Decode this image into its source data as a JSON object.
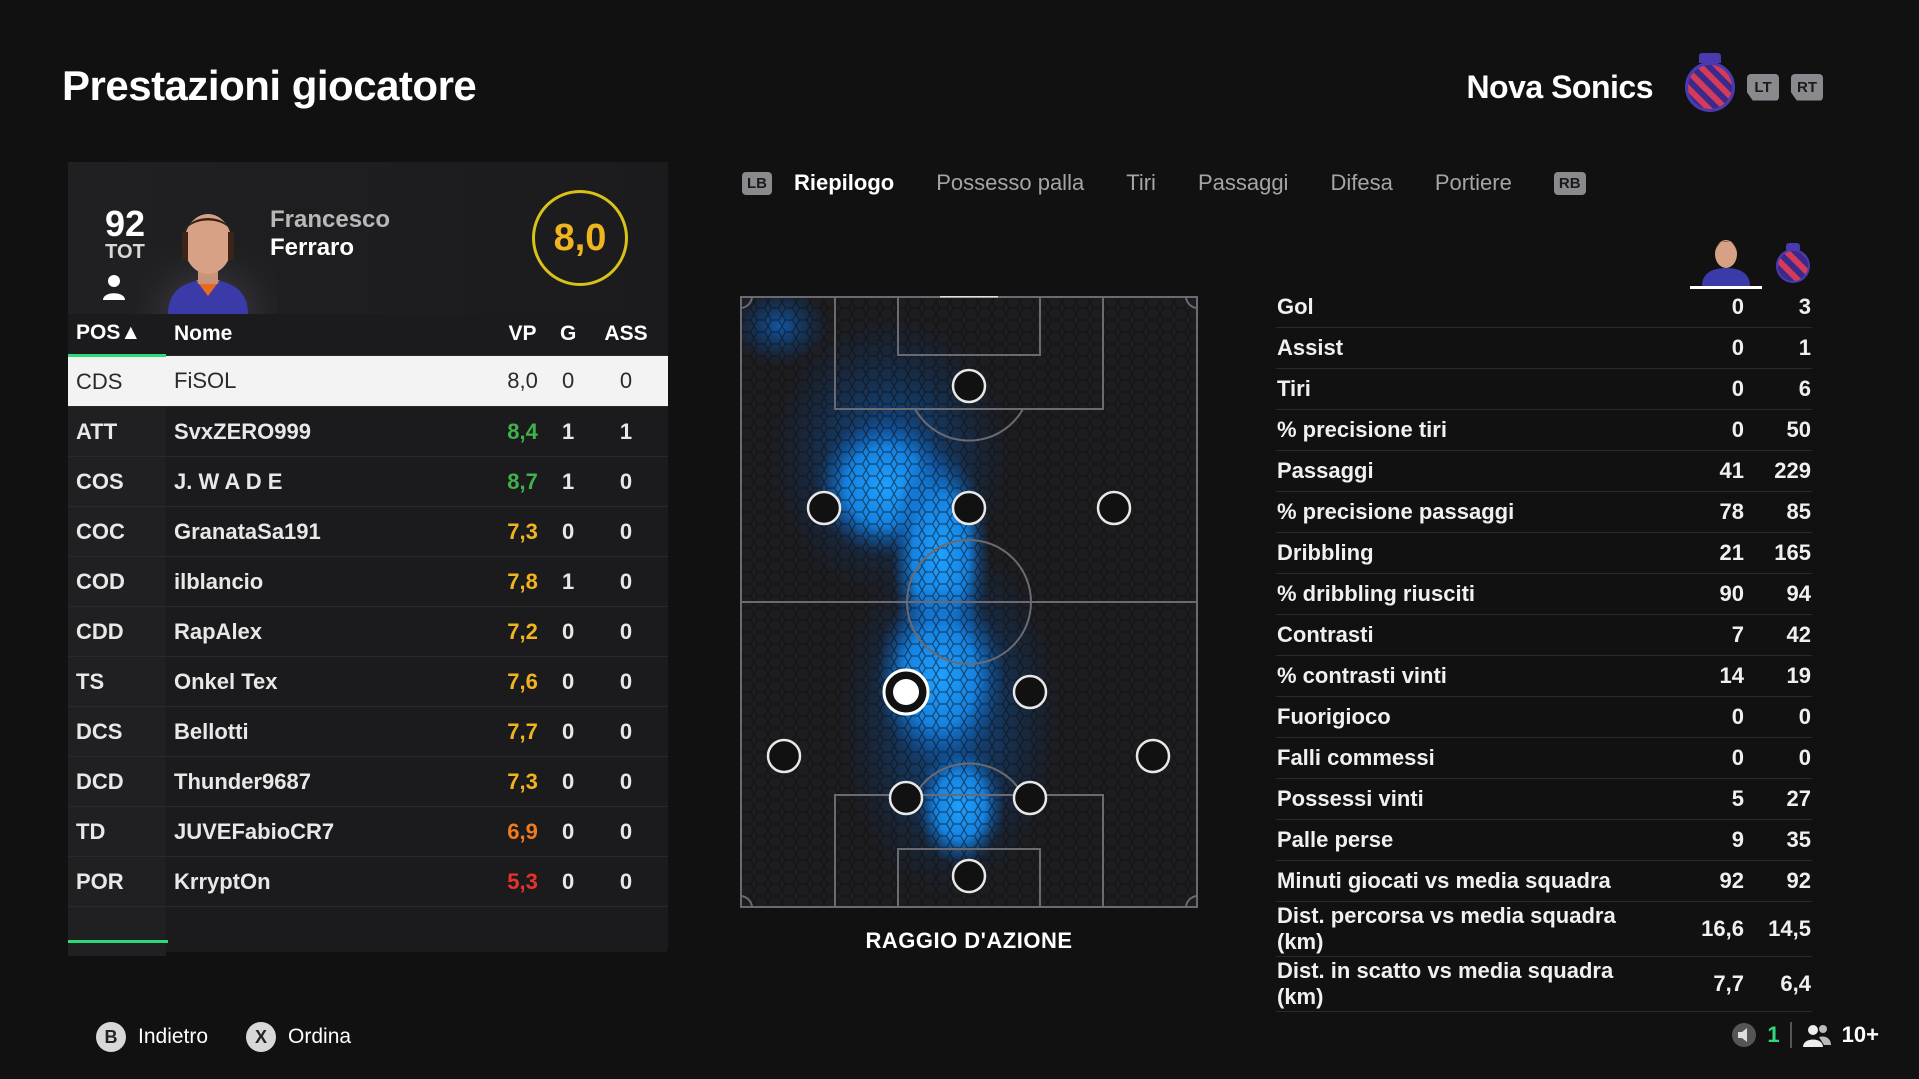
{
  "page": {
    "title": "Prestazioni giocatore"
  },
  "team": {
    "name": "Nova Sonics"
  },
  "buttons": {
    "lt": "LT",
    "rt": "RT",
    "lb": "LB",
    "rb": "RB"
  },
  "player": {
    "ovr": "92",
    "ovr_label": "TOT",
    "first_name": "Francesco",
    "last_name": "Ferraro",
    "rating": "8,0"
  },
  "table": {
    "headers": {
      "pos": "POS▲",
      "name": "Nome",
      "vp": "VP",
      "g": "G",
      "ass": "ASS"
    },
    "rows": [
      {
        "pos": "CDS",
        "name": "FiSOL",
        "vp": "8,0",
        "g": "0",
        "ass": "0",
        "color": "#2a2a2a"
      },
      {
        "pos": "ATT",
        "name": "SvxZERO999",
        "vp": "8,4",
        "g": "1",
        "ass": "1",
        "color": "#3fb24a"
      },
      {
        "pos": "COS",
        "name": "J. W A D E",
        "vp": "8,7",
        "g": "1",
        "ass": "0",
        "color": "#3fb24a"
      },
      {
        "pos": "COC",
        "name": "GranataSa191",
        "vp": "7,3",
        "g": "0",
        "ass": "0",
        "color": "#f0b41e"
      },
      {
        "pos": "COD",
        "name": "ilblancio",
        "vp": "7,8",
        "g": "1",
        "ass": "0",
        "color": "#f0b41e"
      },
      {
        "pos": "CDD",
        "name": "RapAlex",
        "vp": "7,2",
        "g": "0",
        "ass": "0",
        "color": "#f0b41e"
      },
      {
        "pos": "TS",
        "name": "Onkel Tex",
        "vp": "7,6",
        "g": "0",
        "ass": "0",
        "color": "#f0b41e"
      },
      {
        "pos": "DCS",
        "name": "Bellotti",
        "vp": "7,7",
        "g": "0",
        "ass": "0",
        "color": "#f0b41e"
      },
      {
        "pos": "DCD",
        "name": "Thunder9687",
        "vp": "7,3",
        "g": "0",
        "ass": "0",
        "color": "#f0b41e"
      },
      {
        "pos": "TD",
        "name": "JUVEFabioCR7",
        "vp": "6,9",
        "g": "0",
        "ass": "0",
        "color": "#f07a1e"
      },
      {
        "pos": "POR",
        "name": "KrryptOn",
        "vp": "5,3",
        "g": "0",
        "ass": "0",
        "color": "#e8332a"
      }
    ]
  },
  "tabs": [
    {
      "label": "Riepilogo",
      "active": true
    },
    {
      "label": "Possesso palla",
      "active": false
    },
    {
      "label": "Tiri",
      "active": false
    },
    {
      "label": "Passaggi",
      "active": false
    },
    {
      "label": "Difesa",
      "active": false
    },
    {
      "label": "Portiere",
      "active": false
    }
  ],
  "heatmap": {
    "caption": "RAGGIO D'AZIONE"
  },
  "stats": [
    {
      "label": "Gol",
      "player": "0",
      "team": "3"
    },
    {
      "label": "Assist",
      "player": "0",
      "team": "1"
    },
    {
      "label": "Tiri",
      "player": "0",
      "team": "6"
    },
    {
      "label": "% precisione tiri",
      "player": "0",
      "team": "50"
    },
    {
      "label": "Passaggi",
      "player": "41",
      "team": "229"
    },
    {
      "label": "% precisione passaggi",
      "player": "78",
      "team": "85"
    },
    {
      "label": "Dribbling",
      "player": "21",
      "team": "165"
    },
    {
      "label": "% dribbling riusciti",
      "player": "90",
      "team": "94"
    },
    {
      "label": "Contrasti",
      "player": "7",
      "team": "42"
    },
    {
      "label": "% contrasti vinti",
      "player": "14",
      "team": "19"
    },
    {
      "label": "Fuorigioco",
      "player": "0",
      "team": "0"
    },
    {
      "label": "Falli commessi",
      "player": "0",
      "team": "0"
    },
    {
      "label": "Possessi vinti",
      "player": "5",
      "team": "27"
    },
    {
      "label": "Palle perse",
      "player": "9",
      "team": "35"
    },
    {
      "label": "Minuti giocati vs media squadra",
      "player": "92",
      "team": "92"
    },
    {
      "label": "Dist. percorsa vs media squadra (km)",
      "player": "16,6",
      "team": "14,5"
    },
    {
      "label": "Dist. in scatto vs media squadra (km)",
      "player": "7,7",
      "team": "6,4"
    }
  ],
  "footer": {
    "back_key": "B",
    "back_label": "Indietro",
    "sort_key": "X",
    "sort_label": "Ordina",
    "count": "1",
    "players": "10+"
  }
}
